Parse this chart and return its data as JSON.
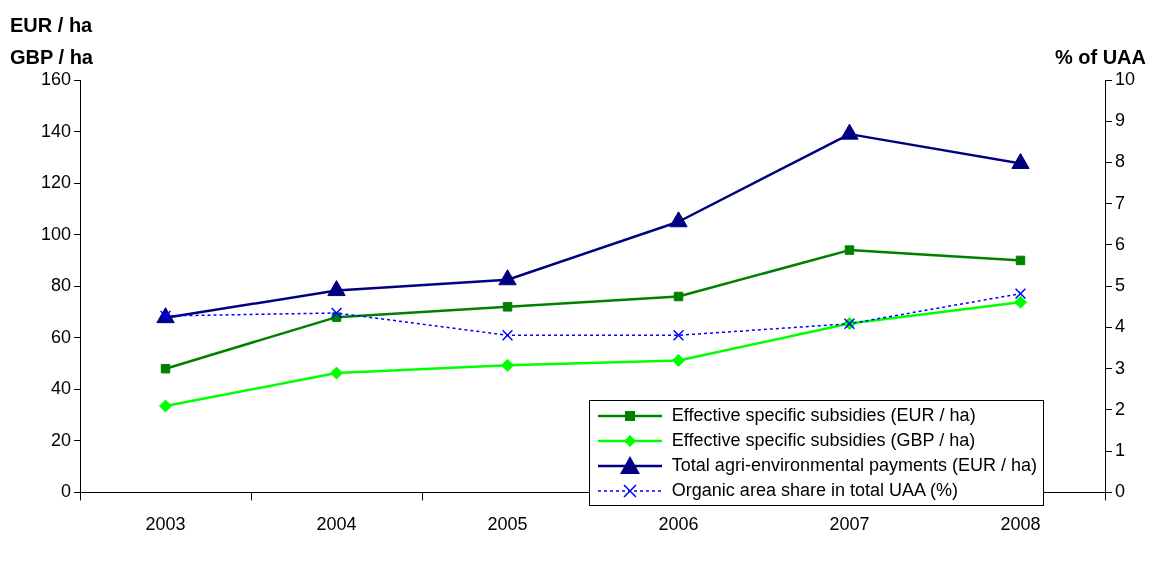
{
  "chart_data": {
    "type": "line",
    "categories": [
      "2003",
      "2004",
      "2005",
      "2006",
      "2007",
      "2008"
    ],
    "ylabel": "EUR / ha\nGBP / ha",
    "y2label": "% of UAA",
    "ylim": [
      0,
      160
    ],
    "yticks": [
      0,
      20,
      40,
      60,
      80,
      100,
      120,
      140,
      160
    ],
    "y2lim": [
      0,
      10
    ],
    "y2ticks": [
      0,
      1,
      2,
      3,
      4,
      5,
      6,
      7,
      8,
      9,
      10
    ],
    "grid": false,
    "legend": "bottom right",
    "series": [
      {
        "name": "Effective specific subsidies (EUR / ha)",
        "color": "#008000",
        "marker": "square",
        "line_style": "solid",
        "values": [
          48,
          68,
          72,
          76,
          94,
          90
        ]
      },
      {
        "name": "Effective specific subsidies (GBP / ha)",
        "color": "#00ff00",
        "marker": "diamond",
        "line_style": "solid",
        "values": [
          33.5,
          46.3,
          49.3,
          51.2,
          65.5,
          73.8
        ]
      },
      {
        "name": "Total agri-environmental payments (EUR / ha)",
        "color": "#000080",
        "marker": "triangle",
        "line_style": "solid",
        "values": [
          67.8,
          78.3,
          82.5,
          105,
          139,
          127.6
        ]
      },
      {
        "name": "Organic area share in total UAA (%)",
        "color": "#0000ff",
        "marker": "cross",
        "line_style": "dotted",
        "axis": "y2",
        "values": [
          4.28,
          4.35,
          3.81,
          3.81,
          4.09,
          4.82
        ]
      }
    ]
  }
}
